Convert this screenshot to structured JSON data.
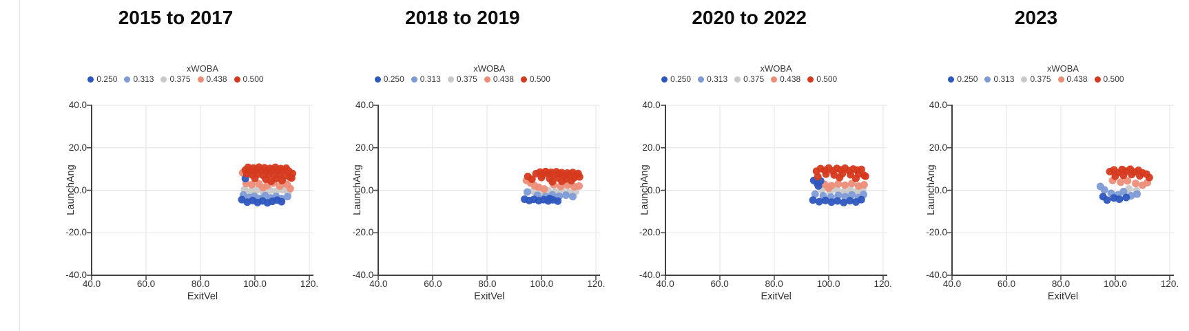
{
  "legend": {
    "title": "xWOBA",
    "items": [
      {
        "label": "0.250",
        "color": "#2d56be"
      },
      {
        "label": "0.313",
        "color": "#7e9bd6"
      },
      {
        "label": "0.375",
        "color": "#c9c9c9"
      },
      {
        "label": "0.438",
        "color": "#ec8d78"
      },
      {
        "label": "0.500",
        "color": "#d63a1e"
      }
    ]
  },
  "axes": {
    "x": {
      "label": "ExitVel",
      "ticks": [
        "40.0",
        "60.0",
        "80.0",
        "100.0",
        "120."
      ],
      "values": [
        40,
        60,
        80,
        100,
        120
      ],
      "range": [
        40,
        121.5
      ]
    },
    "y": {
      "label": "LaunchAng",
      "ticks": [
        "40.0",
        "20.0",
        "0.0",
        "-20.0",
        "-40.0"
      ],
      "values": [
        40,
        20,
        0,
        -20,
        -40
      ],
      "range": [
        -40,
        40
      ]
    }
  },
  "style": {
    "grid_color": "#e3e3e3",
    "axis_color": "#414141",
    "point_radius": 5.5
  },
  "chart_data": [
    {
      "type": "scatter",
      "title": "2015 to 2017",
      "xlabel": "ExitVel",
      "ylabel": "LaunchAng",
      "xlim": [
        40,
        121.5
      ],
      "ylim": [
        -40,
        40
      ],
      "legend_title": "xWOBA",
      "series": [
        {
          "name": "0.250",
          "color": "#2d56be",
          "points": [
            [
              96.5,
              5.5
            ],
            [
              95.2,
              -4.4
            ],
            [
              97.2,
              -5.6
            ],
            [
              99.2,
              -4.8
            ],
            [
              101.0,
              -5.8
            ],
            [
              102.8,
              -5.0
            ],
            [
              104.6,
              -5.9
            ],
            [
              106.4,
              -5.2
            ],
            [
              108.2,
              -4.6
            ],
            [
              109.8,
              -5.4
            ]
          ]
        },
        {
          "name": "0.313",
          "color": "#7e9bd6",
          "points": [
            [
              95.8,
              -2.2
            ],
            [
              97.8,
              -3.4
            ],
            [
              99.8,
              -2.8
            ],
            [
              101.8,
              -3.8
            ],
            [
              103.8,
              -2.5
            ],
            [
              105.8,
              -3.6
            ],
            [
              107.8,
              -2.9
            ],
            [
              109.8,
              -3.9
            ],
            [
              112.0,
              -3.0
            ]
          ]
        },
        {
          "name": "0.375",
          "color": "#c9c9c9",
          "points": [
            [
              96.2,
              0.4
            ],
            [
              98.5,
              -0.6
            ],
            [
              100.8,
              0.2
            ],
            [
              103.2,
              -0.8
            ],
            [
              105.5,
              0.0
            ],
            [
              107.8,
              -0.5
            ],
            [
              110.2,
              0.3
            ],
            [
              112.2,
              -1.2
            ]
          ]
        },
        {
          "name": "0.438",
          "color": "#ec8d78",
          "points": [
            [
              95.5,
              8.2
            ],
            [
              96.8,
              3.2
            ],
            [
              98.8,
              2.6
            ],
            [
              101.5,
              3.0
            ],
            [
              104.5,
              2.2
            ],
            [
              106.8,
              3.4
            ],
            [
              109.2,
              2.0
            ],
            [
              111.8,
              2.8
            ],
            [
              103.0,
              1.2
            ],
            [
              113.0,
              0.8
            ]
          ]
        },
        {
          "name": "0.500",
          "color": "#d63a1e",
          "points": [
            [
              96.5,
              9.5
            ],
            [
              97.5,
              10.8
            ],
            [
              98.5,
              9.2
            ],
            [
              99.5,
              10.5
            ],
            [
              100.5,
              9.8
            ],
            [
              101.5,
              10.9
            ],
            [
              102.5,
              9.4
            ],
            [
              103.5,
              10.6
            ],
            [
              104.5,
              9.1
            ],
            [
              105.5,
              10.3
            ],
            [
              106.5,
              9.7
            ],
            [
              107.5,
              10.8
            ],
            [
              108.5,
              9.3
            ],
            [
              109.5,
              10.2
            ],
            [
              110.5,
              9.6
            ],
            [
              111.5,
              10.4
            ],
            [
              112.5,
              9.0
            ],
            [
              97.0,
              7.8
            ],
            [
              99.0,
              7.2
            ],
            [
              101.0,
              7.6
            ],
            [
              103.0,
              7.0
            ],
            [
              105.0,
              7.5
            ],
            [
              107.0,
              7.1
            ],
            [
              109.0,
              7.4
            ],
            [
              111.0,
              6.8
            ],
            [
              112.8,
              6.2
            ],
            [
              100.0,
              5.6
            ],
            [
              104.0,
              5.2
            ],
            [
              108.0,
              5.5
            ],
            [
              113.5,
              5.8
            ],
            [
              110.0,
              4.6
            ],
            [
              106.0,
              4.2
            ],
            [
              113.8,
              7.9
            ]
          ]
        }
      ]
    },
    {
      "type": "scatter",
      "title": "2018 to 2019",
      "xlabel": "ExitVel",
      "ylabel": "LaunchAng",
      "xlim": [
        40,
        121.5
      ],
      "ylim": [
        -40,
        40
      ],
      "legend_title": "xWOBA",
      "series": [
        {
          "name": "0.250",
          "color": "#2d56be",
          "points": [
            [
              93.8,
              -4.2
            ],
            [
              95.5,
              -4.8
            ],
            [
              97.2,
              -4.3
            ],
            [
              99.0,
              -4.9
            ],
            [
              100.8,
              -4.4
            ],
            [
              102.5,
              -5.0
            ],
            [
              104.2,
              -4.5
            ],
            [
              106.0,
              -5.1
            ],
            [
              103.0,
              -3.9
            ]
          ]
        },
        {
          "name": "0.313",
          "color": "#7e9bd6",
          "points": [
            [
              94.8,
              -0.8
            ],
            [
              98.5,
              -2.4
            ],
            [
              101.5,
              -2.9
            ],
            [
              104.0,
              -2.2
            ],
            [
              106.5,
              -2.8
            ],
            [
              109.0,
              -2.3
            ],
            [
              111.5,
              -3.0
            ]
          ]
        },
        {
          "name": "0.375",
          "color": "#c9c9c9",
          "points": [
            [
              97.0,
              -0.4
            ],
            [
              100.0,
              -1.0
            ],
            [
              102.5,
              -0.2
            ],
            [
              105.0,
              -0.9
            ],
            [
              107.5,
              -0.3
            ],
            [
              110.0,
              -1.1
            ],
            [
              112.5,
              -0.6
            ]
          ]
        },
        {
          "name": "0.438",
          "color": "#ec8d78",
          "points": [
            [
              94.5,
              4.6
            ],
            [
              96.0,
              3.4
            ],
            [
              97.5,
              2.2
            ],
            [
              99.0,
              1.4
            ],
            [
              104.5,
              2.6
            ],
            [
              107.0,
              1.8
            ],
            [
              109.5,
              2.4
            ],
            [
              112.0,
              1.6
            ],
            [
              113.8,
              2.0
            ],
            [
              101.0,
              0.6
            ]
          ]
        },
        {
          "name": "0.500",
          "color": "#d63a1e",
          "points": [
            [
              95.0,
              6.5
            ],
            [
              96.5,
              5.2
            ],
            [
              98.0,
              7.8
            ],
            [
              99.5,
              8.6
            ],
            [
              100.5,
              7.4
            ],
            [
              101.5,
              8.8
            ],
            [
              102.5,
              7.9
            ],
            [
              103.5,
              8.5
            ],
            [
              104.5,
              7.2
            ],
            [
              105.5,
              8.7
            ],
            [
              106.5,
              7.8
            ],
            [
              107.5,
              8.3
            ],
            [
              108.5,
              7.0
            ],
            [
              109.5,
              8.1
            ],
            [
              110.5,
              7.5
            ],
            [
              111.5,
              8.4
            ],
            [
              112.5,
              7.1
            ],
            [
              113.5,
              7.9
            ],
            [
              100.0,
              6.0
            ],
            [
              103.0,
              5.5
            ],
            [
              106.0,
              5.8
            ],
            [
              109.0,
              5.3
            ],
            [
              112.0,
              5.9
            ],
            [
              114.0,
              6.3
            ],
            [
              111.0,
              4.5
            ],
            [
              107.5,
              4.2
            ],
            [
              104.0,
              4.0
            ]
          ]
        }
      ]
    },
    {
      "type": "scatter",
      "title": "2020 to 2022",
      "xlabel": "ExitVel",
      "ylabel": "LaunchAng",
      "xlim": [
        40,
        121.5
      ],
      "ylim": [
        -40,
        40
      ],
      "legend_title": "xWOBA",
      "series": [
        {
          "name": "0.250",
          "color": "#2d56be",
          "points": [
            [
              94.5,
              4.6
            ],
            [
              95.8,
              3.2
            ],
            [
              97.0,
              4.4
            ],
            [
              96.2,
              2.0
            ],
            [
              94.2,
              -4.6
            ],
            [
              96.5,
              -5.4
            ],
            [
              98.8,
              -4.8
            ],
            [
              101.0,
              -5.6
            ],
            [
              103.2,
              -5.0
            ],
            [
              105.5,
              -5.8
            ],
            [
              107.8,
              -4.9
            ],
            [
              110.0,
              -5.5
            ],
            [
              112.0,
              -4.4
            ]
          ]
        },
        {
          "name": "0.313",
          "color": "#7e9bd6",
          "points": [
            [
              95.0,
              -1.8
            ],
            [
              98.0,
              -2.6
            ],
            [
              100.8,
              -3.2
            ],
            [
              103.5,
              -2.4
            ],
            [
              106.0,
              -3.0
            ],
            [
              108.5,
              -2.2
            ],
            [
              111.0,
              -3.4
            ],
            [
              112.8,
              -2.0
            ]
          ]
        },
        {
          "name": "0.375",
          "color": "#c9c9c9",
          "points": [
            [
              97.5,
              0.2
            ],
            [
              100.5,
              -0.6
            ],
            [
              103.0,
              0.4
            ],
            [
              105.5,
              -0.8
            ],
            [
              108.0,
              0.0
            ],
            [
              110.5,
              -0.4
            ],
            [
              112.5,
              0.6
            ],
            [
              106.5,
              -1.6
            ]
          ]
        },
        {
          "name": "0.438",
          "color": "#ec8d78",
          "points": [
            [
              98.5,
              2.8
            ],
            [
              101.0,
              2.2
            ],
            [
              103.5,
              3.0
            ],
            [
              106.0,
              2.4
            ],
            [
              108.5,
              3.2
            ],
            [
              111.0,
              2.0
            ],
            [
              113.0,
              2.6
            ],
            [
              100.0,
              1.0
            ]
          ]
        },
        {
          "name": "0.500",
          "color": "#d63a1e",
          "points": [
            [
              95.5,
              9.0
            ],
            [
              97.0,
              10.2
            ],
            [
              98.5,
              9.4
            ],
            [
              100.0,
              10.5
            ],
            [
              101.5,
              9.1
            ],
            [
              103.0,
              10.3
            ],
            [
              104.5,
              9.6
            ],
            [
              106.0,
              10.4
            ],
            [
              107.5,
              9.2
            ],
            [
              109.0,
              10.0
            ],
            [
              110.5,
              9.5
            ],
            [
              112.0,
              9.8
            ],
            [
              99.0,
              7.6
            ],
            [
              102.0,
              7.2
            ],
            [
              105.0,
              7.8
            ],
            [
              108.0,
              7.3
            ],
            [
              111.0,
              7.7
            ],
            [
              113.0,
              7.0
            ],
            [
              96.0,
              6.4
            ],
            [
              104.0,
              6.0
            ],
            [
              110.0,
              5.6
            ],
            [
              113.5,
              6.6
            ]
          ]
        }
      ]
    },
    {
      "type": "scatter",
      "title": "2023",
      "xlabel": "ExitVel",
      "ylabel": "LaunchAng",
      "xlim": [
        40,
        121.5
      ],
      "ylim": [
        -40,
        40
      ],
      "legend_title": "xWOBA",
      "series": [
        {
          "name": "0.250",
          "color": "#2d56be",
          "points": [
            [
              95.5,
              -3.0
            ],
            [
              97.0,
              -4.6
            ],
            [
              99.5,
              -3.6
            ],
            [
              101.5,
              -4.2
            ],
            [
              104.0,
              -3.4
            ]
          ]
        },
        {
          "name": "0.313",
          "color": "#7e9bd6",
          "points": [
            [
              94.5,
              1.8
            ],
            [
              96.0,
              0.2
            ],
            [
              98.5,
              -1.4
            ],
            [
              101.0,
              -2.2
            ],
            [
              103.0,
              -0.6
            ],
            [
              105.8,
              -2.6
            ],
            [
              108.0,
              -1.8
            ]
          ]
        },
        {
          "name": "0.375",
          "color": "#c9c9c9",
          "points": [
            [
              105.0,
              0.6
            ],
            [
              107.8,
              -0.2
            ],
            [
              103.5,
              -1.0
            ]
          ]
        },
        {
          "name": "0.438",
          "color": "#ec8d78",
          "points": [
            [
              99.0,
              4.6
            ],
            [
              102.0,
              3.8
            ],
            [
              104.5,
              4.4
            ],
            [
              107.5,
              3.2
            ],
            [
              110.0,
              2.4
            ],
            [
              111.8,
              3.6
            ]
          ]
        },
        {
          "name": "0.500",
          "color": "#d63a1e",
          "points": [
            [
              98.0,
              8.8
            ],
            [
              99.5,
              9.6
            ],
            [
              101.0,
              8.4
            ],
            [
              102.5,
              9.8
            ],
            [
              104.0,
              9.0
            ],
            [
              105.5,
              9.9
            ],
            [
              107.0,
              8.6
            ],
            [
              108.5,
              9.4
            ],
            [
              110.0,
              8.2
            ],
            [
              103.0,
              7.0
            ],
            [
              106.0,
              7.4
            ],
            [
              100.0,
              6.6
            ],
            [
              109.0,
              6.8
            ],
            [
              111.5,
              7.6
            ],
            [
              112.5,
              6.0
            ]
          ]
        }
      ]
    }
  ]
}
